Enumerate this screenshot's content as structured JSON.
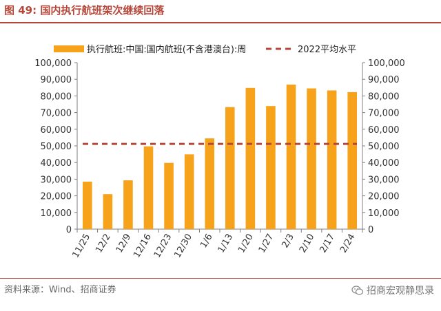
{
  "figure": {
    "title": "图 49:  国内执行航班架次继续回落",
    "source": "资料来源：Wind、招商证券",
    "watermark": "招商宏观静思录"
  },
  "colors": {
    "bar": "#f7a21b",
    "line": "#b5473a",
    "accent": "#b5473a",
    "axis": "#7f7f7f"
  },
  "chart_data": {
    "type": "bar",
    "categories": [
      "11/25",
      "12/2",
      "12/9",
      "12/16",
      "12/23",
      "12/30",
      "1/6",
      "1/13",
      "1/20",
      "1/27",
      "2/3",
      "2/10",
      "2/17",
      "2/24"
    ],
    "series": [
      {
        "name": "执行航班:中国:国内航班(不含港澳台):周",
        "type": "bar",
        "values": [
          28500,
          21000,
          29300,
          49700,
          39800,
          44900,
          54500,
          73300,
          84800,
          73900,
          86800,
          84500,
          83300,
          82300
        ]
      },
      {
        "name": "2022平均水平",
        "type": "line-dashed",
        "value": 51200
      }
    ],
    "ylim": [
      0,
      100000
    ],
    "yticks": [
      "0",
      "10,000",
      "20,000",
      "30,000",
      "40,000",
      "50,000",
      "60,000",
      "70,000",
      "80,000",
      "90,000",
      "100,000"
    ],
    "y2ticks": [
      "0",
      "10,000",
      "20,000",
      "30,000",
      "40,000",
      "50,000",
      "60,000",
      "70,000",
      "80,000",
      "90,000",
      "100,000"
    ],
    "legend_position": "top",
    "grid": false
  }
}
